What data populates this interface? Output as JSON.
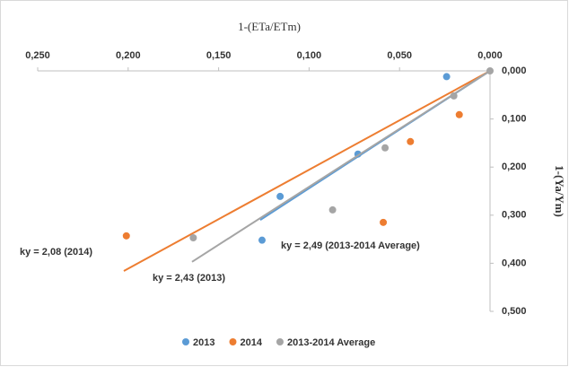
{
  "chart_data": {
    "type": "scatter",
    "xlabel": "1-(ETa/ETm)",
    "ylabel": "1-(Ya/Ym)",
    "xlim": [
      0.25,
      0
    ],
    "ylim": [
      0,
      0.5
    ],
    "xticks": [
      {
        "value": 0.25,
        "label": "0,250"
      },
      {
        "value": 0.2,
        "label": "0,200"
      },
      {
        "value": 0.15,
        "label": "0,150"
      },
      {
        "value": 0.1,
        "label": "0,100"
      },
      {
        "value": 0.05,
        "label": "0,050"
      },
      {
        "value": 0,
        "label": "0,000"
      }
    ],
    "yticks": [
      {
        "value": 0,
        "label": "0,000"
      },
      {
        "value": 0.1,
        "label": "0,100"
      },
      {
        "value": 0.2,
        "label": "0,200"
      },
      {
        "value": 0.3,
        "label": "0,300"
      },
      {
        "value": 0.4,
        "label": "0,400"
      },
      {
        "value": 0.5,
        "label": "0,500"
      }
    ],
    "legend": "bottom",
    "series": [
      {
        "name": "2013",
        "color": "#5b9bd5",
        "x": [
          0.024,
          0.073,
          0.116,
          0.126
        ],
        "values": [
          0.012,
          0.173,
          0.261,
          0.352
        ],
        "trendline": {
          "x": [
            0,
            0.127
          ],
          "y": [
            0,
            0.31
          ]
        }
      },
      {
        "name": "2014",
        "color": "#ed7d31",
        "x": [
          0.017,
          0.044,
          0.059,
          0.201
        ],
        "values": [
          0.091,
          0.147,
          0.315,
          0.343
        ],
        "trendline": {
          "x": [
            0,
            0.2024
          ],
          "y": [
            0,
            0.416
          ]
        }
      },
      {
        "name": "2013-2014 Average",
        "color": "#a5a5a5",
        "x": [
          0,
          0.02,
          0.058,
          0.087,
          0.164
        ],
        "values": [
          0,
          0.052,
          0.16,
          0.289,
          0.347
        ],
        "trendline": {
          "x": [
            0,
            0.1647
          ],
          "y": [
            0,
            0.397
          ]
        }
      }
    ],
    "annotations": [
      "ky = 2,08 (2014)",
      "ky = 2,43 (2013)",
      "ky = 2,49 (2013-2014 Average)"
    ]
  }
}
